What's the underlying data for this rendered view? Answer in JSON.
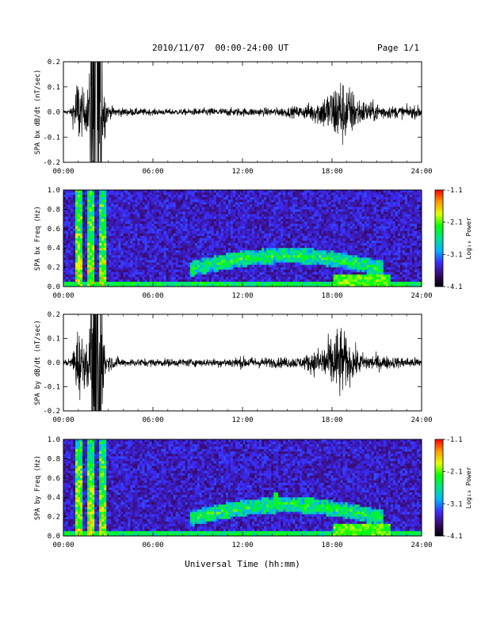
{
  "header": {
    "title": "2010/11/07  00:00-24:00 UT",
    "page": "Page 1/1"
  },
  "footer": {
    "xlabel": "Universal Time (hh:mm)"
  },
  "colorscale": {
    "label": "Log₁₀ Power",
    "ticks": [
      "-1.1",
      "-2.1",
      "-3.1",
      "-4.1"
    ],
    "range": [
      -4.1,
      -1.1
    ],
    "stops": [
      "#000000",
      "#3a0a6e",
      "#3b2dff",
      "#00b4ff",
      "#00e08a",
      "#00ff00",
      "#e0ff00",
      "#ff9b00",
      "#ff0000"
    ]
  },
  "chart_data": [
    {
      "type": "line",
      "ylabel": "SPA bx dB/dt (nT/sec)",
      "x_ticks": [
        "00:00",
        "06:00",
        "12:00",
        "18:00",
        "24:00"
      ],
      "xlim": [
        0,
        24
      ],
      "ylim": [
        -0.2,
        0.2
      ],
      "y_ticks": [
        "0.2",
        "0.1",
        "0.0",
        "-0.1",
        "-0.2"
      ],
      "series": [
        {
          "x": [
            0,
            0.5,
            1.0,
            1.2,
            1.5,
            1.8,
            2.0,
            2.3,
            2.6,
            3.0,
            4.0,
            6.0,
            8.0,
            10.0,
            12.0,
            14.0,
            16.0,
            17.0,
            18.0,
            18.5,
            19.0,
            19.5,
            20.0,
            22.0,
            24.0
          ],
          "amplitude": [
            0.01,
            0.015,
            0.2,
            0.12,
            0.08,
            0.2,
            0.2,
            0.2,
            0.2,
            0.03,
            0.02,
            0.015,
            0.015,
            0.02,
            0.02,
            0.02,
            0.03,
            0.06,
            0.12,
            0.18,
            0.14,
            0.1,
            0.06,
            0.03,
            0.03
          ]
        }
      ]
    },
    {
      "type": "heatmap",
      "ylabel": "SPA bx Freq (Hz)",
      "x_ticks": [
        "00:00",
        "06:00",
        "12:00",
        "18:00",
        "24:00"
      ],
      "xlim": [
        0,
        24
      ],
      "ylim": [
        0,
        1.0
      ],
      "y_ticks": [
        "1.0",
        "0.8",
        "0.6",
        "0.4",
        "0.2",
        "0.0"
      ]
    },
    {
      "type": "line",
      "ylabel": "SPA by dB/dt (nT/sec)",
      "x_ticks": [
        "00:00",
        "06:00",
        "12:00",
        "18:00",
        "24:00"
      ],
      "xlim": [
        0,
        24
      ],
      "ylim": [
        -0.2,
        0.2
      ],
      "y_ticks": [
        "0.2",
        "0.1",
        "0.0",
        "-0.1",
        "-0.2"
      ],
      "series": [
        {
          "x": [
            0,
            0.5,
            1.0,
            1.2,
            1.5,
            1.8,
            2.0,
            2.3,
            2.6,
            3.0,
            4.0,
            6.0,
            8.0,
            10.0,
            12.0,
            14.0,
            16.0,
            17.0,
            18.0,
            18.5,
            19.0,
            19.5,
            20.0,
            22.0,
            24.0
          ],
          "amplitude": [
            0.015,
            0.02,
            0.2,
            0.15,
            0.1,
            0.2,
            0.2,
            0.2,
            0.2,
            0.04,
            0.02,
            0.02,
            0.02,
            0.02,
            0.03,
            0.025,
            0.03,
            0.07,
            0.14,
            0.2,
            0.12,
            0.08,
            0.05,
            0.03,
            0.025
          ]
        }
      ]
    },
    {
      "type": "heatmap",
      "ylabel": "SPA by Freq (Hz)",
      "x_ticks": [
        "00:00",
        "06:00",
        "12:00",
        "18:00",
        "24:00"
      ],
      "xlim": [
        0,
        24
      ],
      "ylim": [
        0,
        1.0
      ],
      "y_ticks": [
        "1.0",
        "0.8",
        "0.6",
        "0.4",
        "0.2",
        "0.0"
      ]
    }
  ]
}
